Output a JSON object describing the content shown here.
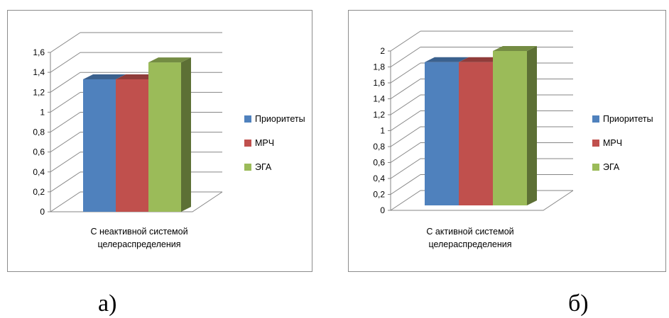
{
  "chart_data": [
    {
      "type": "bar",
      "style": "3d-clustered-column",
      "categories": [
        "С неактивной системой целераспределения"
      ],
      "category_lines": [
        "С неактивной системой",
        "целераспределения"
      ],
      "series": [
        {
          "name": "Приоритеты",
          "values": [
            1.33
          ],
          "color": "#4F81BD"
        },
        {
          "name": "МРЧ",
          "values": [
            1.33
          ],
          "color": "#C0504D"
        },
        {
          "name": "ЭГА",
          "values": [
            1.5
          ],
          "color": "#9BBB59"
        }
      ],
      "ylim": [
        0,
        1.6
      ],
      "yticks": [
        "0",
        "0,2",
        "0,4",
        "0,6",
        "0,8",
        "1",
        "1,2",
        "1,4",
        "1,6"
      ],
      "grid": true,
      "legend": "right"
    },
    {
      "type": "bar",
      "style": "3d-clustered-column",
      "categories": [
        "С активной системой целераспределения"
      ],
      "category_lines": [
        "С активной системой",
        "целераспределения"
      ],
      "series": [
        {
          "name": "Приоритеты",
          "values": [
            1.86
          ],
          "color": "#4F81BD"
        },
        {
          "name": "МРЧ",
          "values": [
            1.86
          ],
          "color": "#C0504D"
        },
        {
          "name": "ЭГА",
          "values": [
            2.0
          ],
          "color": "#9BBB59"
        }
      ],
      "ylim": [
        0,
        2
      ],
      "yticks": [
        "0",
        "0,2",
        "0,4",
        "0,6",
        "0,8",
        "1",
        "1,2",
        "1,4",
        "1,6",
        "1,8",
        "2"
      ],
      "grid": true,
      "legend": "right"
    }
  ],
  "captions": [
    "а)",
    "б)"
  ]
}
